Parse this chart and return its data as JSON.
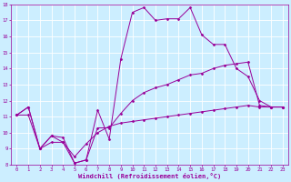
{
  "xlabel": "Windchill (Refroidissement éolien,°C)",
  "ylabel": "",
  "bg_color": "#cceeff",
  "grid_color": "#ffffff",
  "line_color": "#990099",
  "xlim": [
    -0.5,
    23.5
  ],
  "ylim": [
    8,
    18
  ],
  "xticks": [
    0,
    1,
    2,
    3,
    4,
    5,
    6,
    7,
    8,
    9,
    10,
    11,
    12,
    13,
    14,
    15,
    16,
    17,
    18,
    19,
    20,
    21,
    22,
    23
  ],
  "yticks": [
    8,
    9,
    10,
    11,
    12,
    13,
    14,
    15,
    16,
    17,
    18
  ],
  "curve1_x": [
    0,
    1,
    2,
    3,
    4,
    5,
    6,
    7,
    8,
    9,
    10,
    11,
    12,
    13,
    14,
    15,
    16,
    17,
    18,
    19,
    20,
    21,
    22,
    23
  ],
  "curve1_y": [
    11.1,
    11.6,
    9.0,
    9.8,
    9.7,
    8.1,
    8.3,
    11.4,
    9.6,
    14.6,
    17.5,
    17.8,
    17.0,
    17.1,
    17.1,
    17.8,
    16.1,
    15.5,
    15.5,
    14.0,
    13.5,
    12.0,
    11.6,
    11.6
  ],
  "curve2_x": [
    0,
    1,
    2,
    3,
    4,
    5,
    6,
    7,
    8,
    9,
    10,
    11,
    12,
    13,
    14,
    15,
    16,
    17,
    18,
    19,
    20,
    21,
    22,
    23
  ],
  "curve2_y": [
    11.1,
    11.6,
    9.0,
    9.8,
    9.4,
    8.1,
    8.3,
    10.3,
    10.3,
    11.2,
    12.0,
    12.5,
    12.8,
    13.0,
    13.3,
    13.6,
    13.7,
    14.0,
    14.2,
    14.3,
    14.4,
    11.7,
    11.6,
    11.6
  ],
  "curve3_x": [
    0,
    1,
    2,
    3,
    4,
    5,
    6,
    7,
    8,
    9,
    10,
    11,
    12,
    13,
    14,
    15,
    16,
    17,
    18,
    19,
    20,
    21,
    22,
    23
  ],
  "curve3_y": [
    11.1,
    11.1,
    9.0,
    9.4,
    9.4,
    8.5,
    9.3,
    10.0,
    10.4,
    10.6,
    10.7,
    10.8,
    10.9,
    11.0,
    11.1,
    11.2,
    11.3,
    11.4,
    11.5,
    11.6,
    11.7,
    11.6,
    11.6,
    11.6
  ],
  "tick_fontsize": 4.0,
  "xlabel_fontsize": 5.0,
  "marker_size": 1.5,
  "linewidth": 0.7
}
